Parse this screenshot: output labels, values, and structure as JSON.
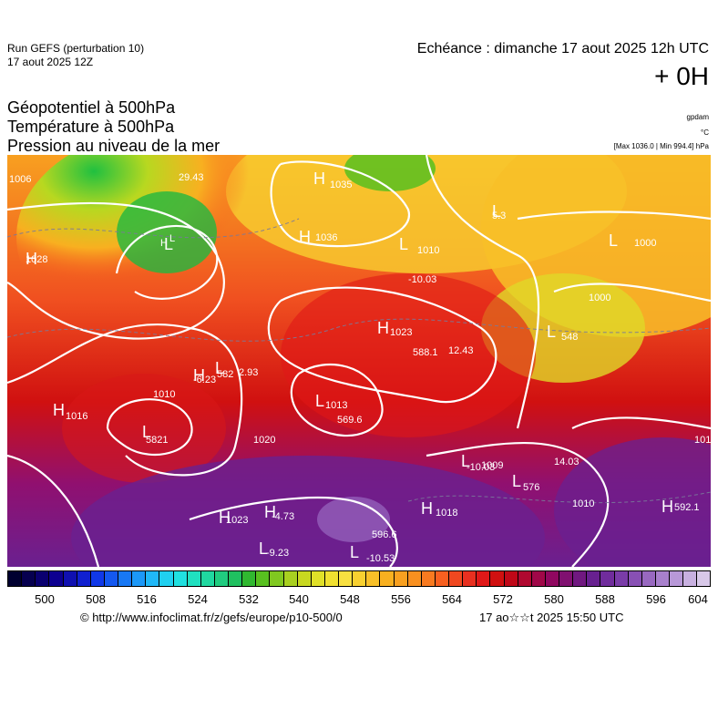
{
  "header": {
    "run_label": "Run GEFS (perturbation 10)",
    "run_date": "17 aout 2025 12Z",
    "valid_time": "Echéance : dimanche 17 aout 2025 12h UTC",
    "lead_time": "+ 0H"
  },
  "titles": {
    "line1": "Géopotentiel à 500hPa",
    "line2": "Température à 500hPa",
    "line3": "Pression au niveau de la mer"
  },
  "units": {
    "geopotential": "gpdam",
    "temperature": "°C",
    "pressure": "[Max 1036.0 | Min 994.4] hPa"
  },
  "colorbar": {
    "colors": [
      "#000030",
      "#06004f",
      "#0a0070",
      "#0d0090",
      "#1010b0",
      "#1020d0",
      "#1038e8",
      "#1458f0",
      "#1878f4",
      "#1c98f8",
      "#20b8f8",
      "#20d0f0",
      "#20e0e0",
      "#20e0c0",
      "#20d8a0",
      "#20cc80",
      "#20c060",
      "#30b830",
      "#58c020",
      "#80c820",
      "#a8d020",
      "#c8d820",
      "#e0e028",
      "#f0e030",
      "#f8e040",
      "#f8d030",
      "#f8c028",
      "#f8b020",
      "#f8a020",
      "#f89020",
      "#f87a20",
      "#f86020",
      "#f04820",
      "#e83020",
      "#e01818",
      "#d01010",
      "#c00818",
      "#b00830",
      "#a00848",
      "#900860",
      "#801070",
      "#701880",
      "#682090",
      "#702c9c",
      "#7a3ca8",
      "#8850b4",
      "#9868c0",
      "#a880cc",
      "#b898d8",
      "#c8b0e0",
      "#d8c8e8"
    ],
    "tick_labels": [
      "500",
      "508",
      "516",
      "524",
      "532",
      "540",
      "548",
      "556",
      "564",
      "572",
      "580",
      "588",
      "596",
      "604"
    ]
  },
  "map": {
    "annotations": [
      {
        "text": "1006"
      },
      {
        "text": "1028"
      },
      {
        "text": "H"
      },
      {
        "text": "L"
      },
      {
        "text": "29.43"
      },
      {
        "text": "1035"
      },
      {
        "text": "1036"
      },
      {
        "text": "5.3"
      },
      {
        "text": "1010"
      },
      {
        "text": "1000"
      },
      {
        "text": "-10.03"
      },
      {
        "text": "1023"
      },
      {
        "text": "588.1"
      },
      {
        "text": "12.43"
      },
      {
        "text": "1000"
      },
      {
        "text": "548"
      },
      {
        "text": "-6.23"
      },
      {
        "text": "582"
      },
      {
        "text": "2.93"
      },
      {
        "text": "1016"
      },
      {
        "text": "1013"
      },
      {
        "text": "569.6"
      },
      {
        "text": "1010"
      },
      {
        "text": "5821"
      },
      {
        "text": "1020"
      },
      {
        "text": "1009"
      },
      {
        "text": "-10.03"
      },
      {
        "text": "14.03"
      },
      {
        "text": "576"
      },
      {
        "text": "1023"
      },
      {
        "text": "-4.73"
      },
      {
        "text": "1018"
      },
      {
        "text": "596.6"
      },
      {
        "text": "-9.23"
      },
      {
        "text": "-10.53"
      },
      {
        "text": "592.1"
      },
      {
        "text": "1010"
      },
      {
        "text": "101"
      }
    ]
  },
  "footer": {
    "credit": "© http://www.infoclimat.fr/z/gefs/europe/p10-500/0",
    "timestamp": "17 ao☆☆t 2025 15:50 UTC"
  }
}
